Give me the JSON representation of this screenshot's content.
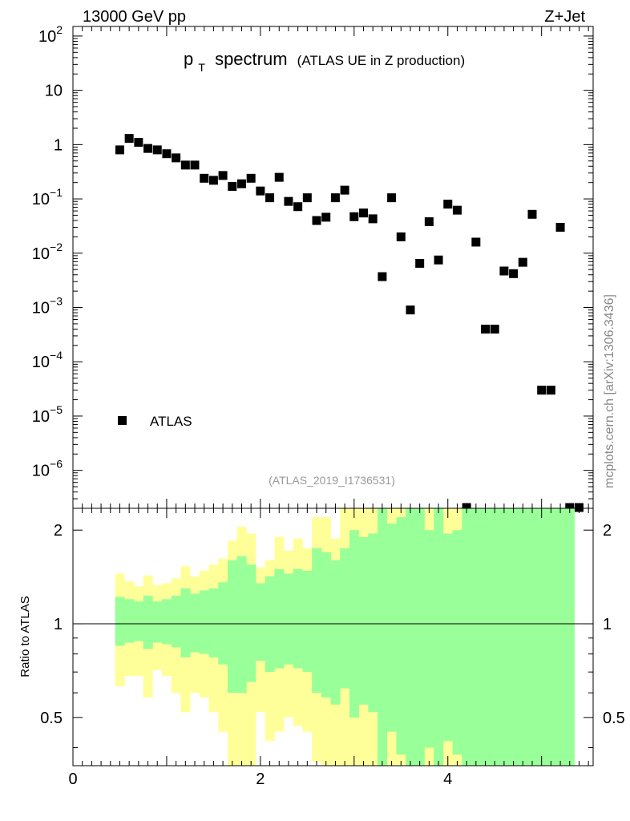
{
  "header": {
    "energy_label": "13000 GeV pp",
    "process_label": "Z+Jet"
  },
  "side_label": "mcplots.cern.ch [arXiv:1306.3436]",
  "chart_data": [
    {
      "type": "scatter",
      "panel": "main",
      "title_main": "p",
      "title_sub": "T",
      "title_rest": "spectrum",
      "title_note": "(ATLAS UE in Z production)",
      "analysis_id": "(ATLAS_2019_I1736531)",
      "yscale": "log",
      "ylim": [
        2e-07,
        150
      ],
      "xlim": [
        0,
        5.55
      ],
      "ytick_labels": [
        {
          "base": "10",
          "exp": "2",
          "value": 100
        },
        {
          "base": "10",
          "exp": "",
          "value": 10
        },
        {
          "base": "1",
          "exp": "",
          "value": 1
        },
        {
          "base": "10",
          "exp": "−1",
          "value": 0.1
        },
        {
          "base": "10",
          "exp": "−2",
          "value": 0.01
        },
        {
          "base": "10",
          "exp": "−3",
          "value": 0.001
        },
        {
          "base": "10",
          "exp": "−4",
          "value": 0.0001
        },
        {
          "base": "10",
          "exp": "−5",
          "value": 1e-05
        },
        {
          "base": "10",
          "exp": "−6",
          "value": 1e-06
        }
      ],
      "legend": [
        {
          "name": "ATLAS",
          "marker": "square",
          "color": "#000000"
        }
      ],
      "series": [
        {
          "name": "ATLAS",
          "x": [
            0.5,
            0.6,
            0.7,
            0.8,
            0.9,
            1.0,
            1.1,
            1.2,
            1.3,
            1.4,
            1.5,
            1.6,
            1.7,
            1.8,
            1.9,
            2.0,
            2.1,
            2.2,
            2.3,
            2.4,
            2.5,
            2.6,
            2.7,
            2.8,
            2.9,
            3.0,
            3.1,
            3.2,
            3.3,
            3.4,
            3.5,
            3.6,
            3.7,
            3.8,
            3.9,
            4.0,
            4.1,
            4.2,
            4.3,
            4.4,
            4.5,
            4.6,
            4.7,
            4.8,
            4.9,
            5.0,
            5.1,
            5.2,
            5.3,
            5.4
          ],
          "y": [
            0.8,
            1.3,
            1.1,
            0.85,
            0.8,
            0.68,
            0.57,
            0.42,
            0.42,
            0.24,
            0.22,
            0.27,
            0.17,
            0.19,
            0.24,
            0.14,
            0.105,
            0.25,
            0.09,
            0.072,
            0.105,
            0.04,
            0.046,
            0.105,
            0.145,
            0.047,
            0.055,
            0.043,
            0.0037,
            0.105,
            0.02,
            0.0009,
            0.0065,
            0.038,
            0.0075,
            0.08,
            0.062,
            1.5e-07,
            0.016,
            0.0004,
            0.0004,
            0.0047,
            0.0042,
            0.0068,
            0.052,
            3e-05,
            3e-05,
            0.03,
            1.5e-07,
            1.5e-07
          ]
        }
      ]
    },
    {
      "type": "area",
      "panel": "ratio",
      "ylabel": "Ratio to ATLAS",
      "yscale": "log",
      "ylim": [
        0.35,
        2.35
      ],
      "xlim": [
        0,
        5.55
      ],
      "xticks": [
        0,
        2,
        4
      ],
      "xtick_labels": [
        "0",
        "2",
        "4"
      ],
      "yticks": [
        0.5,
        1,
        2
      ],
      "ytick_labels": [
        "0.5",
        "1",
        "2"
      ],
      "reference_line": 1,
      "bin_width": 0.1,
      "bins_x": [
        0.5,
        0.6,
        0.7,
        0.8,
        0.9,
        1.0,
        1.1,
        1.2,
        1.3,
        1.4,
        1.5,
        1.6,
        1.7,
        1.8,
        1.9,
        2.0,
        2.1,
        2.2,
        2.3,
        2.4,
        2.5,
        2.6,
        2.7,
        2.8,
        2.9,
        3.0,
        3.1,
        3.2,
        3.3,
        3.4,
        3.5,
        3.6,
        3.7,
        3.8,
        3.9,
        4.0,
        4.1,
        4.2,
        4.3,
        4.4,
        4.5,
        4.6,
        4.7,
        4.8,
        4.9,
        5.0,
        5.1,
        5.2,
        5.3
      ],
      "series": [
        {
          "name": "stat+syst band",
          "color": "#ffff99",
          "lower": [
            0.63,
            0.68,
            0.68,
            0.58,
            0.71,
            0.68,
            0.6,
            0.52,
            0.6,
            0.58,
            0.52,
            0.45,
            0.32,
            0.32,
            0.35,
            0.52,
            0.42,
            0.45,
            0.5,
            0.47,
            0.45,
            0.36,
            0.35,
            0.32,
            0.33,
            0.32,
            0.32,
            0.32,
            0.32,
            0.32,
            0.32,
            0.32,
            0.32,
            0.32,
            0.32,
            0.32,
            0.32,
            0.32,
            0.32,
            0.32,
            0.32,
            0.32,
            0.32,
            0.32,
            0.32,
            0.32,
            0.32,
            0.32,
            0.32
          ],
          "upper": [
            1.45,
            1.37,
            1.32,
            1.43,
            1.33,
            1.35,
            1.4,
            1.53,
            1.42,
            1.48,
            1.55,
            1.62,
            1.85,
            2.05,
            1.95,
            1.52,
            1.6,
            1.9,
            1.72,
            1.88,
            1.75,
            2.2,
            2.2,
            1.88,
            2.4,
            2.4,
            2.4,
            2.4,
            2.4,
            2.4,
            2.4,
            2.4,
            2.4,
            2.4,
            2.4,
            2.4,
            2.4,
            2.4,
            2.4,
            2.4,
            2.4,
            2.4,
            2.4,
            2.4,
            2.4,
            2.4,
            2.4,
            2.4,
            2.4
          ]
        },
        {
          "name": "stat band",
          "color": "#99ff99",
          "lower": [
            0.85,
            0.87,
            0.88,
            0.83,
            0.87,
            0.86,
            0.84,
            0.78,
            0.81,
            0.8,
            0.78,
            0.74,
            0.6,
            0.6,
            0.65,
            0.76,
            0.7,
            0.72,
            0.74,
            0.72,
            0.7,
            0.6,
            0.58,
            0.55,
            0.62,
            0.5,
            0.55,
            0.52,
            0.32,
            0.45,
            0.38,
            0.32,
            0.32,
            0.4,
            0.32,
            0.42,
            0.38,
            0.32,
            0.32,
            0.32,
            0.32,
            0.32,
            0.32,
            0.32,
            0.32,
            0.32,
            0.32,
            0.32,
            0.32
          ],
          "upper": [
            1.22,
            1.2,
            1.18,
            1.23,
            1.18,
            1.2,
            1.23,
            1.3,
            1.25,
            1.28,
            1.3,
            1.36,
            1.6,
            1.65,
            1.55,
            1.35,
            1.42,
            1.5,
            1.45,
            1.5,
            1.48,
            1.75,
            1.7,
            1.6,
            1.75,
            2.0,
            1.9,
            1.95,
            2.4,
            2.1,
            2.2,
            2.4,
            2.4,
            2.0,
            2.4,
            1.95,
            2.0,
            2.4,
            2.4,
            2.4,
            2.4,
            2.4,
            2.4,
            2.4,
            2.4,
            2.4,
            2.4,
            2.4,
            2.4
          ]
        }
      ]
    }
  ]
}
